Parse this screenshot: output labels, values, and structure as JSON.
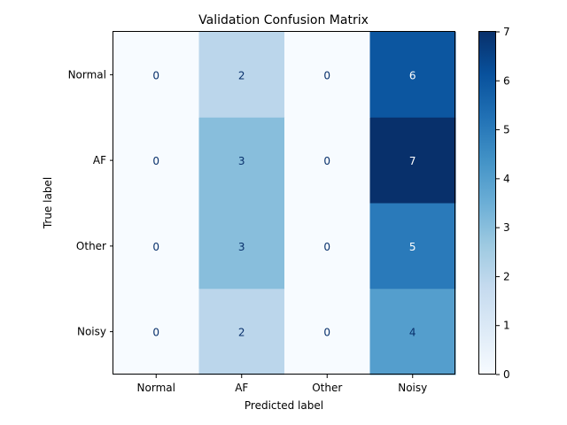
{
  "chart_data": {
    "type": "heatmap",
    "title": "Validation Confusion Matrix",
    "xlabel": "Predicted label",
    "ylabel": "True label",
    "x_categories": [
      "Normal",
      "AF",
      "Other",
      "Noisy"
    ],
    "y_categories": [
      "Normal",
      "AF",
      "Other",
      "Noisy"
    ],
    "values": [
      [
        0,
        2,
        0,
        6
      ],
      [
        0,
        3,
        0,
        7
      ],
      [
        0,
        3,
        0,
        5
      ],
      [
        0,
        2,
        0,
        4
      ]
    ],
    "colorscale": "Blues",
    "colorbar": {
      "min": 0,
      "max": 7,
      "ticks": [
        "0",
        "1",
        "2",
        "3",
        "4",
        "5",
        "6",
        "7"
      ]
    },
    "grid": false
  }
}
